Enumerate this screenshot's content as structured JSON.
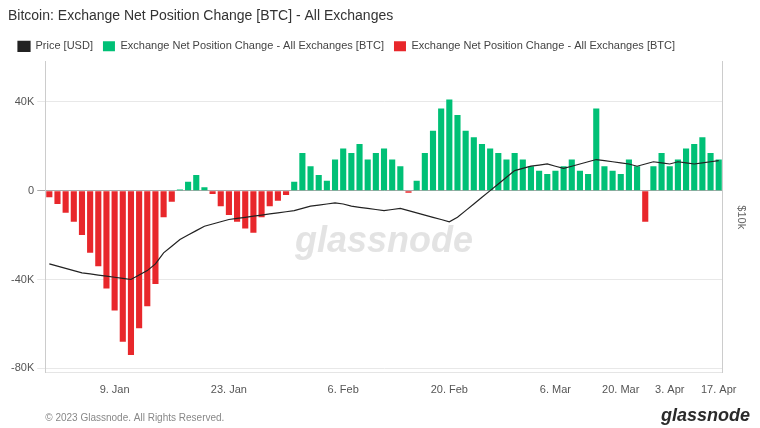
{
  "chart_data": {
    "type": "bar",
    "title": "Bitcoin: Exchange Net Position Change [BTC] - All Exchanges",
    "categories": [
      null,
      null,
      null,
      null,
      null,
      null,
      null,
      null,
      "9. Jan",
      null,
      null,
      null,
      null,
      null,
      null,
      null,
      null,
      null,
      null,
      null,
      null,
      null,
      "23. Jan",
      null,
      null,
      null,
      null,
      null,
      null,
      null,
      null,
      null,
      null,
      null,
      null,
      null,
      "6. Feb",
      null,
      null,
      null,
      null,
      null,
      null,
      null,
      null,
      null,
      null,
      null,
      null,
      "20. Feb",
      null,
      null,
      null,
      null,
      null,
      null,
      null,
      null,
      null,
      null,
      null,
      null,
      "6. Mar",
      null,
      null,
      null,
      null,
      null,
      null,
      null,
      "20. Mar",
      null,
      null,
      null,
      null,
      null,
      "3. Apr",
      null,
      null,
      null,
      null,
      null,
      "17. Apr"
    ],
    "series": [
      {
        "name": "Exchange Net Position Change - All Exchanges [BTC]",
        "type": "bar",
        "color": "#00c076",
        "values": [
          null,
          null,
          null,
          null,
          null,
          null,
          null,
          null,
          null,
          null,
          null,
          null,
          null,
          null,
          null,
          null,
          500,
          4000,
          7000,
          1500,
          null,
          null,
          null,
          null,
          null,
          null,
          null,
          null,
          null,
          null,
          4000,
          17000,
          11000,
          7000,
          4500,
          14000,
          19000,
          17000,
          21000,
          14000,
          17000,
          19000,
          14000,
          11000,
          null,
          4500,
          17000,
          27000,
          37000,
          41000,
          34000,
          27000,
          24000,
          21000,
          19000,
          17000,
          14000,
          17000,
          14000,
          11000,
          9000,
          7500,
          9000,
          11000,
          14000,
          9000,
          7500,
          37000,
          11000,
          9000,
          7500,
          14000,
          11000,
          null,
          11000,
          17000,
          11000,
          14000,
          19000,
          21000,
          24000,
          17000,
          14000
        ]
      },
      {
        "name": "Exchange Net Position Change - All Exchanges [BTC]",
        "type": "bar",
        "color": "#e8272b",
        "values": [
          -3000,
          -6000,
          -10000,
          -14000,
          -20000,
          -28000,
          -34000,
          -44000,
          -54000,
          -68000,
          -74000,
          -62000,
          -52000,
          -42000,
          -12000,
          -5000,
          null,
          null,
          null,
          null,
          -1500,
          -7000,
          -11000,
          -14000,
          -17000,
          -19000,
          -12000,
          -7000,
          -4500,
          -2000,
          null,
          null,
          null,
          null,
          null,
          null,
          null,
          null,
          null,
          null,
          null,
          null,
          null,
          null,
          -1000,
          null,
          null,
          null,
          null,
          null,
          null,
          null,
          null,
          null,
          null,
          null,
          null,
          null,
          null,
          null,
          null,
          null,
          null,
          null,
          null,
          null,
          null,
          null,
          null,
          null,
          null,
          null,
          null,
          -14000,
          null,
          null,
          null,
          null,
          null,
          null,
          null,
          null,
          null
        ]
      },
      {
        "name": "Price [USD]",
        "type": "line",
        "color": "#222222",
        "values": [
          -33000,
          -34000,
          -35000,
          -36000,
          -37000,
          -37500,
          -38000,
          -38500,
          -39000,
          -39500,
          -40000,
          -38000,
          -36000,
          -33000,
          -28000,
          -25000,
          -22000,
          -20000,
          -18000,
          -16000,
          -15000,
          -14000,
          -13000,
          -12500,
          -12000,
          -11500,
          -11000,
          -10500,
          -10000,
          -9500,
          -9000,
          -8000,
          -7000,
          -6500,
          -6000,
          -5500,
          -6000,
          -7000,
          -7500,
          -8000,
          -8500,
          -9000,
          -8500,
          -8000,
          -9000,
          -10000,
          -11000,
          -12000,
          -13000,
          -14000,
          -12000,
          -9000,
          -6000,
          -3000,
          0,
          3000,
          6000,
          9000,
          10000,
          11000,
          11500,
          12000,
          11000,
          10000,
          11000,
          12000,
          13000,
          14000,
          13500,
          13000,
          12500,
          12000,
          11000,
          12000,
          13000,
          12500,
          12000,
          13000,
          12500,
          12000,
          12500,
          13000,
          13500
        ]
      }
    ],
    "ylim": [
      -82000,
      58000
    ],
    "yticks": [
      {
        "value": -80000,
        "label": "-80K"
      },
      {
        "value": -40000,
        "label": "-40K"
      },
      0,
      {
        "value": 40000,
        "label": "40K"
      }
    ],
    "y2label": "$10k",
    "annotations": [
      "© 2023 Glassnode. All Rights Reserved.",
      "glassnode",
      "glassnode"
    ],
    "grid": "y",
    "legend": "upper left"
  }
}
